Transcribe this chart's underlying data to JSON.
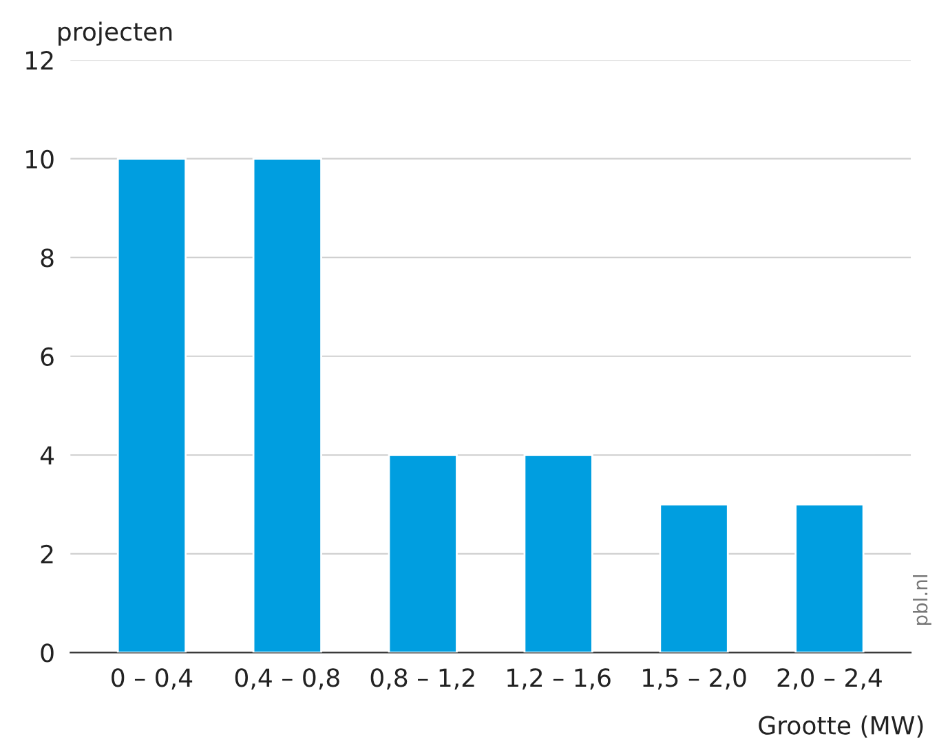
{
  "chart_data": {
    "type": "bar",
    "ylabel": "projecten",
    "xlabel": "Grootte (MW)",
    "categories": [
      "0 – 0,4",
      "0,4 – 0,8",
      "0,8 – 1,2",
      "1,2 – 1,6",
      "1,5 – 2,0",
      "2,0 – 2,4"
    ],
    "values": [
      10,
      10,
      4,
      4,
      3,
      3
    ],
    "color": "#009ee0",
    "ylim": [
      0,
      12
    ],
    "yticks": [
      0,
      2,
      4,
      6,
      8,
      10,
      12
    ],
    "grid": "y",
    "annotations": [
      "pbl.nl"
    ]
  }
}
